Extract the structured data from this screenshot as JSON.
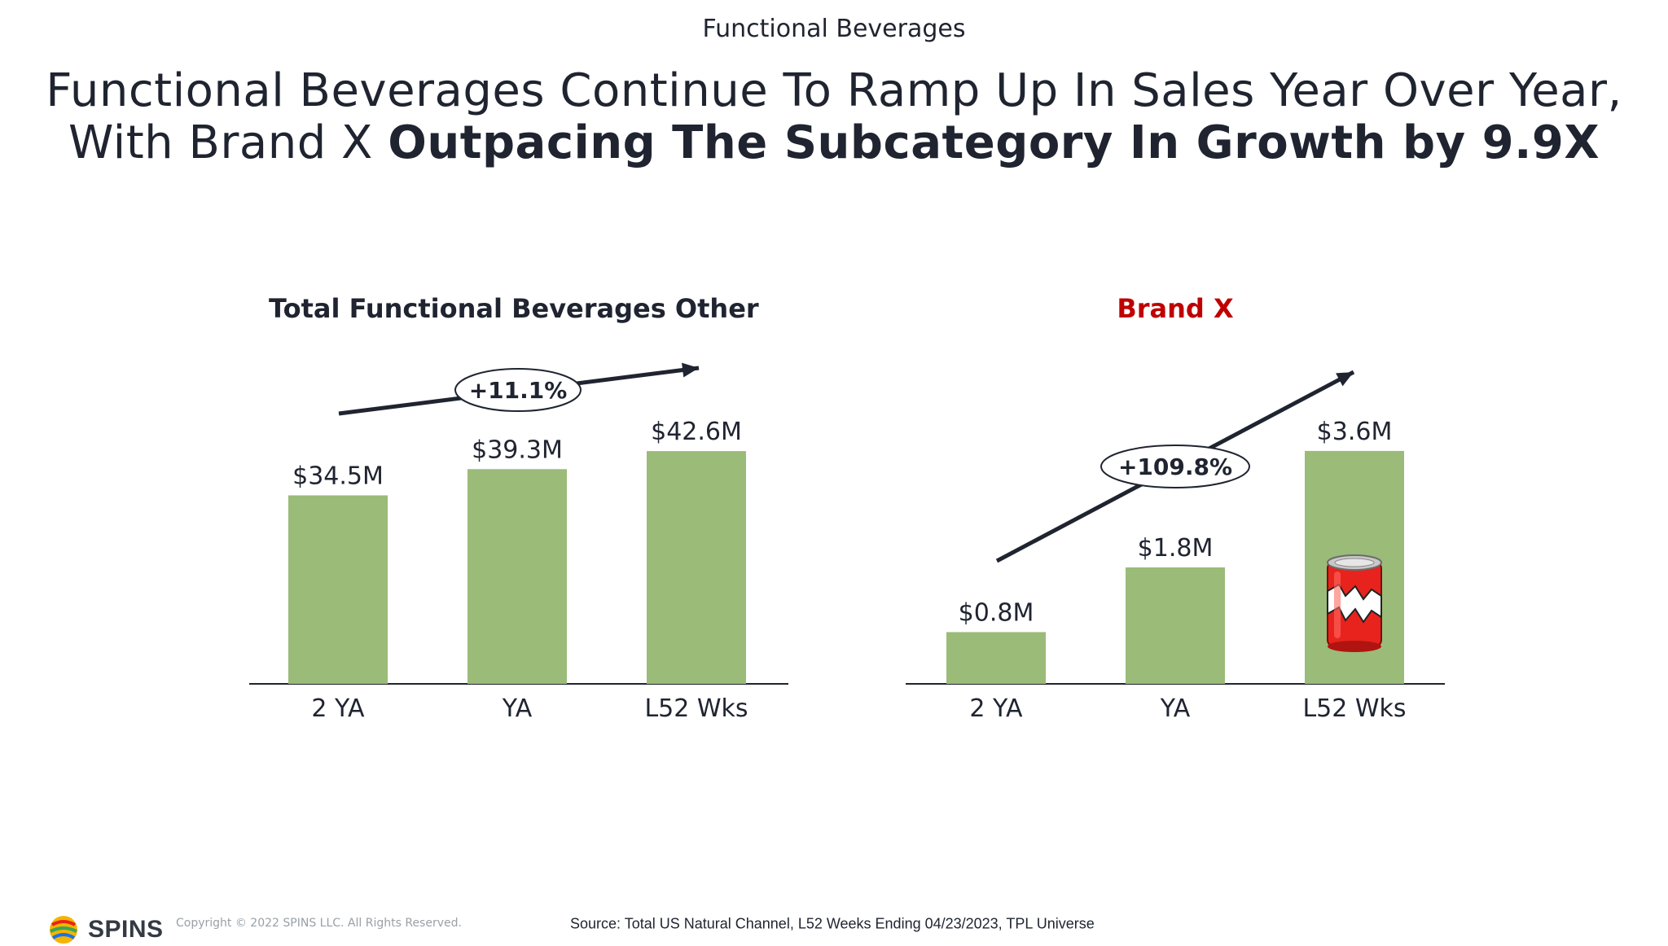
{
  "page": {
    "section_label": "Functional Beverages",
    "headline_line1": "Functional Beverages Continue To Ramp Up In Sales Year Over Year,",
    "headline_line2_regular": "With Brand X ",
    "headline_line2_bold": "Outpacing The Subcategory In Growth by 9.9X"
  },
  "colors": {
    "bar": "#9bbb79",
    "axis": "#1f2430",
    "text": "#1f2430",
    "brand_title": "#c00000",
    "can_red": "#e8231d"
  },
  "chart_data": [
    {
      "type": "bar",
      "title": "Total Functional Beverages Other",
      "categories": [
        "2 YA",
        "YA",
        "L52 Wks"
      ],
      "values": [
        34.5,
        39.3,
        42.6
      ],
      "value_labels": [
        "$34.5M",
        "$39.3M",
        "$42.6M"
      ],
      "growth_label": "+11.1%",
      "ylim": [
        0,
        45
      ]
    },
    {
      "type": "bar",
      "title": "Brand X",
      "categories": [
        "2 YA",
        "YA",
        "L52 Wks"
      ],
      "values": [
        0.8,
        1.8,
        3.6
      ],
      "value_labels": [
        "$0.8M",
        "$1.8M",
        "$3.6M"
      ],
      "growth_label": "+109.8%",
      "ylim": [
        0,
        3.8
      ]
    }
  ],
  "footer": {
    "logo_text": "SPINS",
    "copyright": "Copyright © 2022 SPINS LLC. All Rights Reserved.",
    "source": "Source: Total US Natural Channel, L52 Weeks Ending 04/23/2023, TPL Universe"
  }
}
